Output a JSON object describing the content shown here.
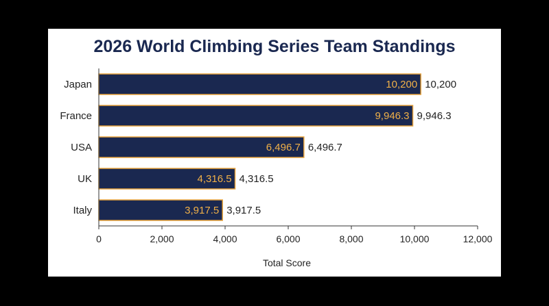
{
  "colors": {
    "background": "#000000",
    "card": "#ffffff",
    "bar_fill": "#1a2850",
    "bar_stroke": "#e8a33c",
    "inside_label": "#f0b048",
    "title": "#1a2850",
    "text": "#222222"
  },
  "chart_data": {
    "type": "bar",
    "orientation": "horizontal",
    "title": "2026 World Climbing Series Team Standings",
    "xlabel": "Total Score",
    "ylabel": "",
    "categories": [
      "Japan",
      "France",
      "USA",
      "UK",
      "Italy"
    ],
    "values": [
      10200,
      9946.3,
      6496.7,
      4316.5,
      3917.5
    ],
    "value_labels": [
      "10,200",
      "9,946.3",
      "6,496.7",
      "4,316.5",
      "3,917.5"
    ],
    "xlim": [
      0,
      12000
    ],
    "xticks": [
      0,
      2000,
      4000,
      6000,
      8000,
      10000,
      12000
    ],
    "xtick_labels": [
      "0",
      "2,000",
      "4,000",
      "6,000",
      "8,000",
      "10,000",
      "12,000"
    ],
    "grid": false,
    "legend": "none"
  }
}
